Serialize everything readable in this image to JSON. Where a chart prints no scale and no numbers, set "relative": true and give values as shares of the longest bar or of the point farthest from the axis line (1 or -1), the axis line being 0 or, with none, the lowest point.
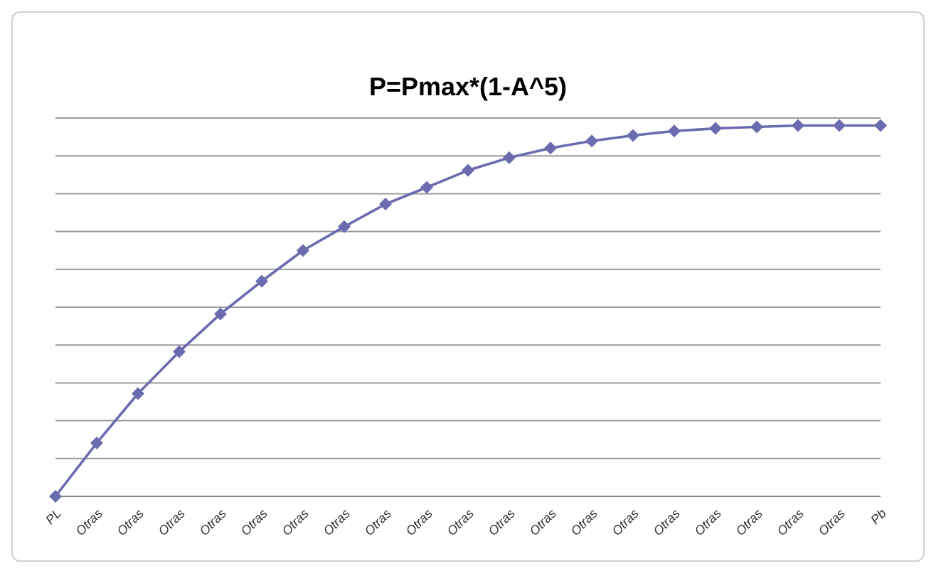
{
  "chart_data": {
    "type": "line",
    "title": "P=Pmax*(1-A^5)",
    "relative": true,
    "grid": "y",
    "marker": "diamond",
    "line_style": "solid",
    "categories": [
      "PL",
      "Otras",
      "Otras",
      "Otras",
      "Otras",
      "Otras",
      "Otras",
      "Otras",
      "Otras",
      "Otras",
      "Otras",
      "Otras",
      "Otras",
      "Otras",
      "Otras",
      "Otras",
      "Otras",
      "Otras",
      "Otras",
      "Otras",
      "Pb"
    ],
    "series": [
      {
        "color": "#6b6bb0",
        "values": [
          0,
          0.144,
          0.277,
          0.39,
          0.492,
          0.58,
          0.663,
          0.727,
          0.788,
          0.833,
          0.879,
          0.913,
          0.939,
          0.958,
          0.973,
          0.985,
          0.992,
          0.996,
          1,
          1,
          1
        ]
      }
    ]
  }
}
